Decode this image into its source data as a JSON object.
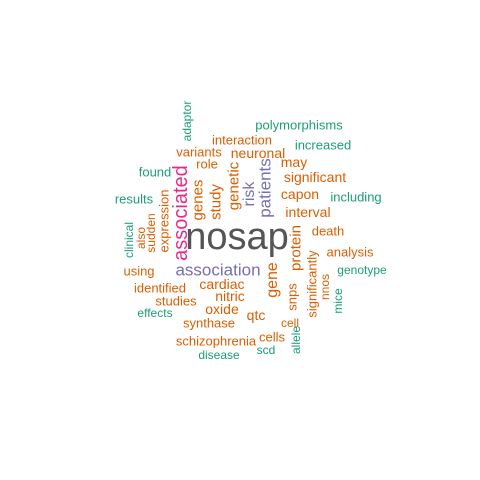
{
  "colors": {
    "green": "#1b9e77",
    "orange": "#d95f02",
    "purple": "#7570b3",
    "magenta": "#e7298a",
    "gray": "#555555"
  },
  "words": [
    {
      "text": "nosap",
      "color": "gray",
      "vertical": false
    },
    {
      "text": "associated",
      "color": "magenta",
      "vertical": true
    },
    {
      "text": "association",
      "color": "purple",
      "vertical": false
    },
    {
      "text": "patients",
      "color": "purple",
      "vertical": true
    },
    {
      "text": "risk",
      "color": "purple",
      "vertical": true
    },
    {
      "text": "gene",
      "color": "orange",
      "vertical": true
    },
    {
      "text": "genes",
      "color": "orange",
      "vertical": true
    },
    {
      "text": "study",
      "color": "orange",
      "vertical": true
    },
    {
      "text": "genetic",
      "color": "orange",
      "vertical": true
    },
    {
      "text": "protein",
      "color": "orange",
      "vertical": true
    },
    {
      "text": "cardiac",
      "color": "orange",
      "vertical": false
    },
    {
      "text": "nitric",
      "color": "orange",
      "vertical": false
    },
    {
      "text": "oxide",
      "color": "orange",
      "vertical": false
    },
    {
      "text": "qtc",
      "color": "orange",
      "vertical": false
    },
    {
      "text": "interval",
      "color": "orange",
      "vertical": false
    },
    {
      "text": "significant",
      "color": "orange",
      "vertical": false
    },
    {
      "text": "capon",
      "color": "orange",
      "vertical": false
    },
    {
      "text": "neuronal",
      "color": "orange",
      "vertical": false
    },
    {
      "text": "variants",
      "color": "orange",
      "vertical": false
    },
    {
      "text": "interaction",
      "color": "orange",
      "vertical": false
    },
    {
      "text": "role",
      "color": "orange",
      "vertical": false
    },
    {
      "text": "may",
      "color": "orange",
      "vertical": false
    },
    {
      "text": "expression",
      "color": "orange",
      "vertical": true
    },
    {
      "text": "sudden",
      "color": "orange",
      "vertical": true
    },
    {
      "text": "also",
      "color": "orange",
      "vertical": true
    },
    {
      "text": "clinical",
      "color": "green",
      "vertical": true
    },
    {
      "text": "death",
      "color": "orange",
      "vertical": false
    },
    {
      "text": "analysis",
      "color": "orange",
      "vertical": false
    },
    {
      "text": "genotype",
      "color": "green",
      "vertical": false
    },
    {
      "text": "including",
      "color": "green",
      "vertical": false
    },
    {
      "text": "increased",
      "color": "green",
      "vertical": false
    },
    {
      "text": "polymorphisms",
      "color": "green",
      "vertical": false
    },
    {
      "text": "adaptor",
      "color": "green",
      "vertical": true
    },
    {
      "text": "found",
      "color": "green",
      "vertical": false
    },
    {
      "text": "results",
      "color": "green",
      "vertical": false
    },
    {
      "text": "using",
      "color": "orange",
      "vertical": false
    },
    {
      "text": "identified",
      "color": "orange",
      "vertical": false
    },
    {
      "text": "studies",
      "color": "orange",
      "vertical": false
    },
    {
      "text": "effects",
      "color": "green",
      "vertical": false
    },
    {
      "text": "synthase",
      "color": "orange",
      "vertical": false
    },
    {
      "text": "schizophrenia",
      "color": "orange",
      "vertical": false
    },
    {
      "text": "disease",
      "color": "green",
      "vertical": false
    },
    {
      "text": "cells",
      "color": "orange",
      "vertical": false
    },
    {
      "text": "scd",
      "color": "green",
      "vertical": false
    },
    {
      "text": "cell",
      "color": "orange",
      "vertical": false
    },
    {
      "text": "snps",
      "color": "orange",
      "vertical": true
    },
    {
      "text": "significantly",
      "color": "orange",
      "vertical": true
    },
    {
      "text": "nnos",
      "color": "orange",
      "vertical": true
    },
    {
      "text": "mice",
      "color": "green",
      "vertical": true
    },
    {
      "text": "allele",
      "color": "green",
      "vertical": true
    }
  ]
}
